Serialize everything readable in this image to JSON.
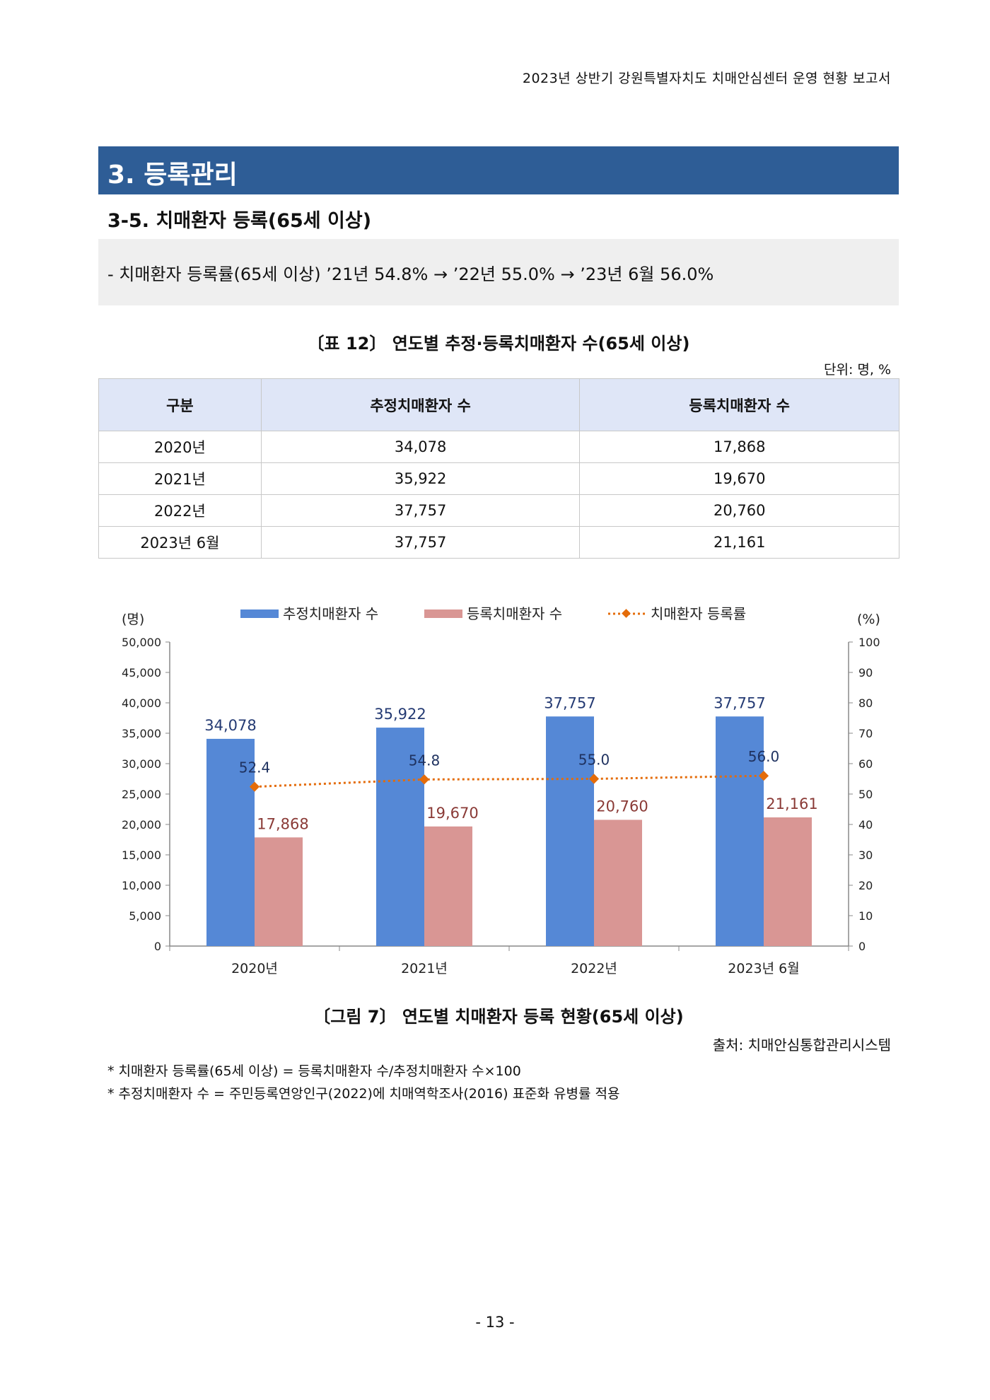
{
  "header": {
    "title": "2023년 상반기 강원특별자치도 치매안심센터 운영 현황 보고서"
  },
  "section": {
    "title": "3. 등록관리"
  },
  "subsection": {
    "title": "3-5. 치매환자 등록(65세 이상)"
  },
  "summary": {
    "text": "- 치매환자 등록률(65세 이상) ’21년 54.8% → ’22년 55.0% → ’23년 6월 56.0%"
  },
  "table": {
    "caption": "〔표 12〕 연도별 추정·등록치매환자 수(65세 이상)",
    "unit": "단위: 명, %",
    "headers": [
      "구분",
      "추정치매환자 수",
      "등록치매환자 수"
    ],
    "rows": [
      [
        "2020년",
        "34,078",
        "17,868"
      ],
      [
        "2021년",
        "35,922",
        "19,670"
      ],
      [
        "2022년",
        "37,757",
        "20,760"
      ],
      [
        "2023년 6월",
        "37,757",
        "21,161"
      ]
    ]
  },
  "chart_data": {
    "type": "bar",
    "categories": [
      "2020년",
      "2021년",
      "2022년",
      "2023년 6월"
    ],
    "series": [
      {
        "name": "추정치매환자 수",
        "type": "bar",
        "axis": "left",
        "color": "#5588d6",
        "values": [
          34078,
          35922,
          37757,
          37757
        ],
        "labels": [
          "34,078",
          "35,922",
          "37,757",
          "37,757"
        ]
      },
      {
        "name": "등록치매환자 수",
        "type": "bar",
        "axis": "left",
        "color": "#d99694",
        "values": [
          17868,
          19670,
          20760,
          21161
        ],
        "labels": [
          "17,868",
          "19,670",
          "20,760",
          "21,161"
        ]
      },
      {
        "name": "치매환자 등록률",
        "type": "line",
        "axis": "right",
        "color": "#e46c0a",
        "values": [
          52.4,
          54.8,
          55.0,
          56.0
        ],
        "labels": [
          "52.4",
          "54.8",
          "55.0",
          "56.0"
        ]
      }
    ],
    "ylabel_left": "(명)",
    "ylabel_right": "(%)",
    "ylim_left": [
      0,
      50000
    ],
    "ylim_right": [
      0,
      100
    ],
    "yticks_left": [
      "0",
      "5,000",
      "10,000",
      "15,000",
      "20,000",
      "25,000",
      "30,000",
      "35,000",
      "40,000",
      "45,000",
      "50,000"
    ],
    "yticks_right": [
      "0",
      "10",
      "20",
      "30",
      "40",
      "50",
      "60",
      "70",
      "80",
      "90",
      "100"
    ],
    "legend_position": "top",
    "grid": false
  },
  "figure": {
    "caption": "〔그림 7〕 연도별 치매환자 등록 현황(65세 이상)"
  },
  "source": {
    "text": "출처: 치매안심통합관리시스템"
  },
  "notes": [
    "* 치매환자 등록률(65세 이상) = 등록치매환자 수/추정치매환자 수×100",
    "* 추정치매환자 수 = 주민등록연앙인구(2022)에 치매역학조사(2016) 표준화 유병률 적용"
  ],
  "footer": {
    "page": "- 13 -"
  }
}
